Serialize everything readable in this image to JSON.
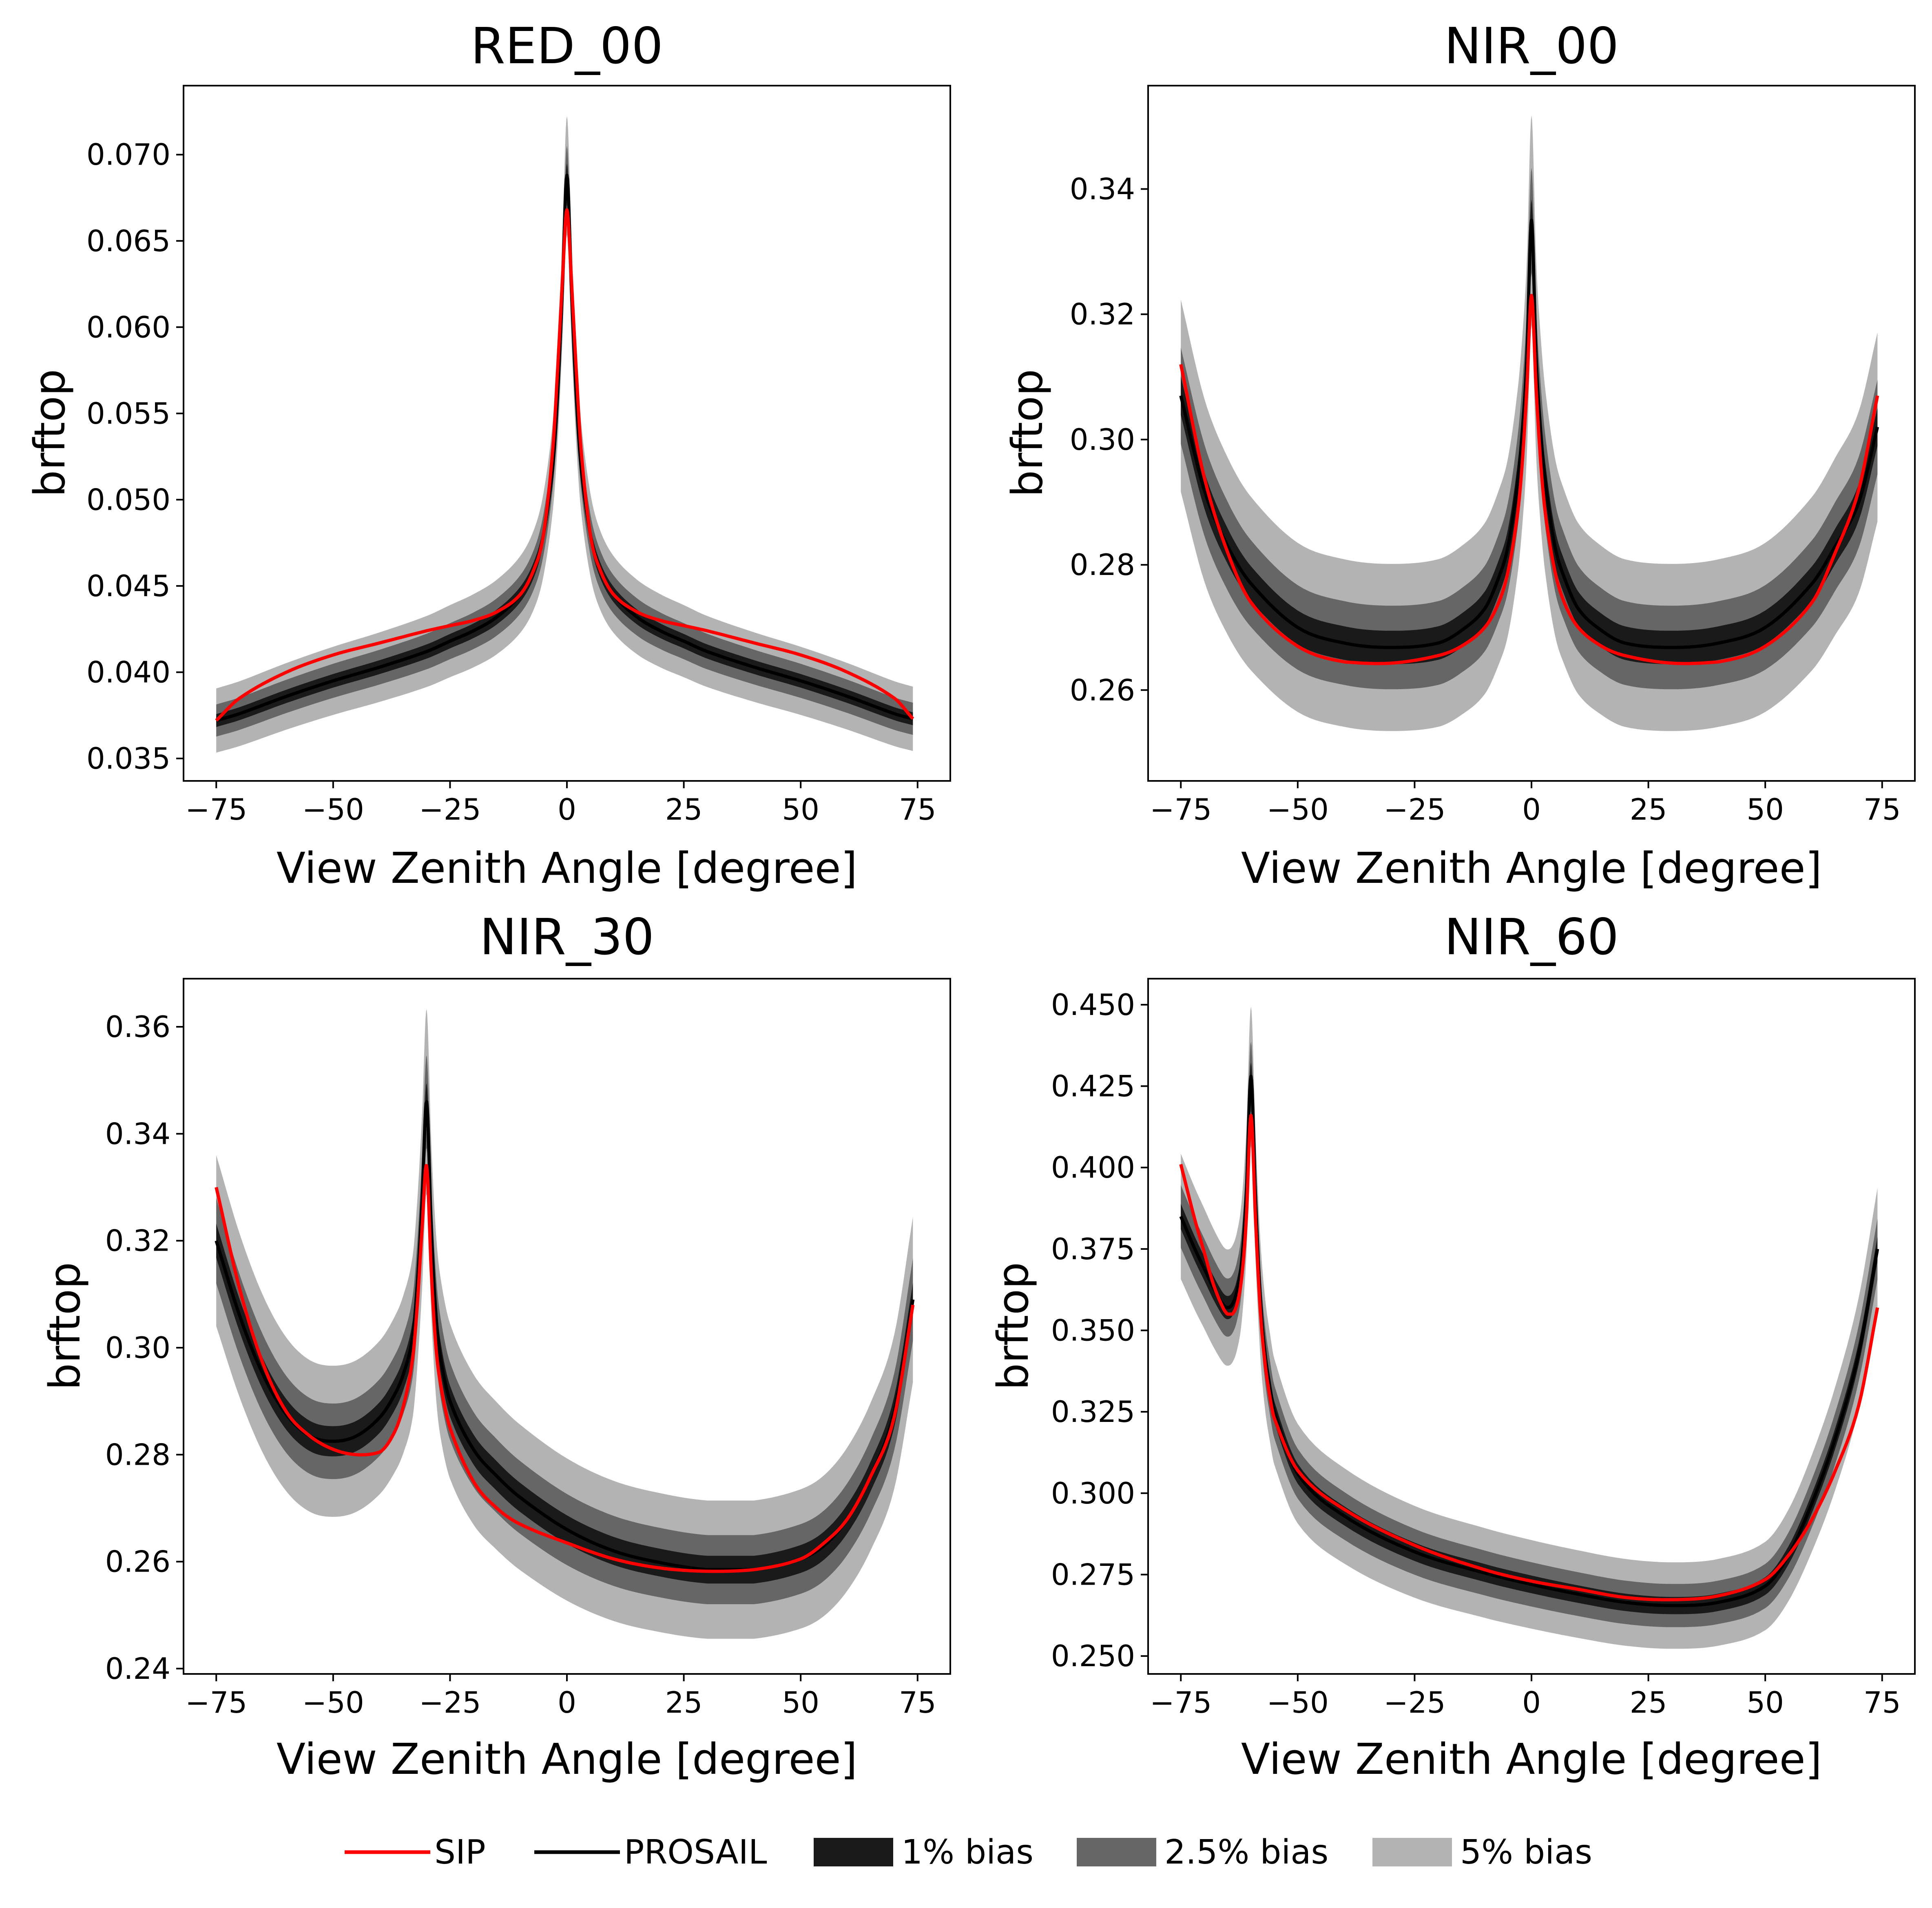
{
  "chart_data": [
    {
      "type": "area",
      "title": "RED_00",
      "xlabel": "View Zenith Angle [degree]",
      "ylabel": "brftop",
      "xlim": [
        -82,
        82
      ],
      "ylim": [
        0.0337,
        0.074
      ],
      "xticks": [
        -75,
        -50,
        -25,
        0,
        25,
        50,
        75
      ],
      "xtick_labels": [
        "−75",
        "−50",
        "−25",
        "0",
        "25",
        "50",
        "75"
      ],
      "yticks": [
        0.035,
        0.04,
        0.045,
        0.05,
        0.055,
        0.06,
        0.065,
        0.07
      ],
      "ytick_labels": [
        "0.035",
        "0.040",
        "0.045",
        "0.050",
        "0.055",
        "0.060",
        "0.065",
        "0.070"
      ],
      "x": [
        -75,
        -70,
        -60,
        -50,
        -40,
        -30,
        -25,
        -20,
        -15,
        -10,
        -7,
        -5,
        -3,
        -2,
        -1,
        0,
        1,
        2,
        3,
        5,
        7,
        10,
        15,
        20,
        25,
        30,
        40,
        50,
        60,
        70,
        74
      ],
      "series": [
        {
          "name": "SIP",
          "values": [
            0.0372,
            0.0385,
            0.04,
            0.041,
            0.0417,
            0.0424,
            0.0427,
            0.043,
            0.0435,
            0.0445,
            0.046,
            0.048,
            0.053,
            0.0575,
            0.0625,
            0.0668,
            0.0625,
            0.0575,
            0.053,
            0.048,
            0.046,
            0.0445,
            0.0435,
            0.043,
            0.0427,
            0.0424,
            0.0417,
            0.041,
            0.04,
            0.0385,
            0.0373
          ]
        },
        {
          "name": "PROSAIL",
          "values": [
            0.0372,
            0.0376,
            0.0386,
            0.0395,
            0.0403,
            0.0412,
            0.0418,
            0.0424,
            0.0432,
            0.0445,
            0.046,
            0.048,
            0.052,
            0.056,
            0.062,
            0.0688,
            0.062,
            0.056,
            0.052,
            0.048,
            0.046,
            0.0445,
            0.0432,
            0.0424,
            0.0418,
            0.0412,
            0.0403,
            0.0395,
            0.0386,
            0.0376,
            0.0373
          ]
        }
      ],
      "bands": [
        {
          "name": "1% bias",
          "color": "#1a1a1a",
          "fraction": 0.01
        },
        {
          "name": "2.5% bias",
          "color": "#666666",
          "fraction": 0.025
        },
        {
          "name": "5% bias",
          "color": "#b3b3b3",
          "fraction": 0.05
        }
      ]
    },
    {
      "type": "area",
      "title": "NIR_00",
      "xlabel": "View Zenith Angle [degree]",
      "ylabel": "brftop",
      "xlim": [
        -82,
        82
      ],
      "ylim": [
        0.2455,
        0.3565
      ],
      "xticks": [
        -75,
        -50,
        -25,
        0,
        25,
        50,
        75
      ],
      "xtick_labels": [
        "−75",
        "−50",
        "−25",
        "0",
        "25",
        "50",
        "75"
      ],
      "yticks": [
        0.26,
        0.28,
        0.3,
        0.32,
        0.34
      ],
      "ytick_labels": [
        "0.26",
        "0.28",
        "0.30",
        "0.32",
        "0.34"
      ],
      "x": [
        -75,
        -70,
        -65,
        -60,
        -50,
        -40,
        -30,
        -20,
        -15,
        -10,
        -7,
        -5,
        -3,
        -2,
        -1,
        0,
        1,
        2,
        3,
        5,
        7,
        10,
        15,
        20,
        30,
        40,
        50,
        60,
        65,
        70,
        74
      ],
      "series": [
        {
          "name": "SIP",
          "values": [
            0.312,
            0.294,
            0.282,
            0.274,
            0.267,
            0.2645,
            0.2643,
            0.2655,
            0.267,
            0.27,
            0.274,
            0.279,
            0.288,
            0.296,
            0.308,
            0.323,
            0.308,
            0.296,
            0.288,
            0.279,
            0.274,
            0.27,
            0.267,
            0.2655,
            0.2643,
            0.2645,
            0.267,
            0.274,
            0.282,
            0.292,
            0.307
          ]
        },
        {
          "name": "PROSAIL",
          "values": [
            0.307,
            0.292,
            0.283,
            0.277,
            0.27,
            0.2675,
            0.2668,
            0.2675,
            0.2695,
            0.273,
            0.278,
            0.283,
            0.293,
            0.301,
            0.313,
            0.335,
            0.313,
            0.301,
            0.293,
            0.283,
            0.278,
            0.273,
            0.2695,
            0.2675,
            0.2668,
            0.2675,
            0.27,
            0.277,
            0.283,
            0.29,
            0.302
          ]
        }
      ],
      "bands": [
        {
          "name": "1% bias",
          "color": "#1a1a1a",
          "fraction": 0.01
        },
        {
          "name": "2.5% bias",
          "color": "#666666",
          "fraction": 0.025
        },
        {
          "name": "5% bias",
          "color": "#b3b3b3",
          "fraction": 0.05
        }
      ]
    },
    {
      "type": "area",
      "title": "NIR_30",
      "xlabel": "View Zenith Angle [degree]",
      "ylabel": "brftop",
      "xlim": [
        -82,
        82
      ],
      "ylim": [
        0.239,
        0.369
      ],
      "xticks": [
        -75,
        -50,
        -25,
        0,
        25,
        50,
        75
      ],
      "xtick_labels": [
        "−75",
        "−50",
        "−25",
        "0",
        "25",
        "50",
        "75"
      ],
      "yticks": [
        0.24,
        0.26,
        0.28,
        0.3,
        0.32,
        0.34,
        0.36
      ],
      "ytick_labels": [
        "0.24",
        "0.26",
        "0.28",
        "0.30",
        "0.32",
        "0.34",
        "0.36"
      ],
      "x": [
        -75,
        -70,
        -65,
        -60,
        -55,
        -50,
        -45,
        -40,
        -37,
        -35,
        -33,
        -32,
        -31,
        -30,
        -29,
        -28,
        -27,
        -25,
        -20,
        -15,
        -10,
        0,
        10,
        20,
        30,
        40,
        50,
        55,
        60,
        65,
        70,
        74
      ],
      "series": [
        {
          "name": "SIP",
          "values": [
            0.33,
            0.311,
            0.297,
            0.288,
            0.2835,
            0.281,
            0.28,
            0.2805,
            0.284,
            0.289,
            0.298,
            0.308,
            0.322,
            0.334,
            0.314,
            0.3,
            0.293,
            0.285,
            0.275,
            0.27,
            0.267,
            0.2635,
            0.2605,
            0.2588,
            0.2582,
            0.2585,
            0.2605,
            0.2635,
            0.268,
            0.276,
            0.287,
            0.308
          ]
        },
        {
          "name": "PROSAIL",
          "values": [
            0.32,
            0.306,
            0.295,
            0.2875,
            0.2835,
            0.2825,
            0.2835,
            0.287,
            0.291,
            0.295,
            0.302,
            0.312,
            0.327,
            0.346,
            0.322,
            0.306,
            0.298,
            0.29,
            0.281,
            0.276,
            0.272,
            0.266,
            0.262,
            0.2598,
            0.2585,
            0.2585,
            0.2605,
            0.263,
            0.268,
            0.276,
            0.288,
            0.309
          ]
        }
      ],
      "bands": [
        {
          "name": "1% bias",
          "color": "#1a1a1a",
          "fraction": 0.01
        },
        {
          "name": "2.5% bias",
          "color": "#666666",
          "fraction": 0.025
        },
        {
          "name": "5% bias",
          "color": "#b3b3b3",
          "fraction": 0.05
        }
      ]
    },
    {
      "type": "area",
      "title": "NIR_60",
      "xlabel": "View Zenith Angle [degree]",
      "ylabel": "brftop",
      "xlim": [
        -82,
        82
      ],
      "ylim": [
        0.2445,
        0.458
      ],
      "xticks": [
        -75,
        -50,
        -25,
        0,
        25,
        50,
        75
      ],
      "xtick_labels": [
        "−75",
        "−50",
        "−25",
        "0",
        "25",
        "50",
        "75"
      ],
      "yticks": [
        0.25,
        0.275,
        0.3,
        0.325,
        0.35,
        0.375,
        0.4,
        0.425,
        0.45
      ],
      "ytick_labels": [
        "0.250",
        "0.275",
        "0.300",
        "0.325",
        "0.350",
        "0.375",
        "0.400",
        "0.425",
        "0.450"
      ],
      "x": [
        -75,
        -72,
        -70,
        -68,
        -66,
        -65,
        -64,
        -63,
        -62,
        -61,
        -60,
        -59,
        -58,
        -57,
        -56,
        -55,
        -50,
        -40,
        -25,
        -10,
        0,
        10,
        20,
        30,
        40,
        50,
        55,
        60,
        65,
        70,
        74
      ],
      "series": [
        {
          "name": "SIP",
          "values": [
            0.401,
            0.384,
            0.374,
            0.364,
            0.357,
            0.355,
            0.355,
            0.358,
            0.366,
            0.384,
            0.416,
            0.383,
            0.356,
            0.34,
            0.33,
            0.323,
            0.307,
            0.295,
            0.284,
            0.2765,
            0.273,
            0.2705,
            0.268,
            0.2673,
            0.2685,
            0.2735,
            0.281,
            0.292,
            0.307,
            0.327,
            0.357
          ]
        },
        {
          "name": "PROSAIL",
          "values": [
            0.385,
            0.375,
            0.369,
            0.363,
            0.358,
            0.357,
            0.358,
            0.362,
            0.371,
            0.392,
            0.428,
            0.39,
            0.36,
            0.343,
            0.333,
            0.325,
            0.306,
            0.293,
            0.282,
            0.2755,
            0.272,
            0.269,
            0.2665,
            0.2655,
            0.2665,
            0.2715,
            0.281,
            0.297,
            0.317,
            0.343,
            0.375
          ]
        }
      ],
      "bands": [
        {
          "name": "1% bias",
          "color": "#1a1a1a",
          "fraction": 0.01
        },
        {
          "name": "2.5% bias",
          "color": "#666666",
          "fraction": 0.025
        },
        {
          "name": "5% bias",
          "color": "#b3b3b3",
          "fraction": 0.05
        }
      ]
    }
  ],
  "legend": {
    "placement": "bottom-center",
    "items": [
      {
        "label": "SIP",
        "kind": "line",
        "color": "#ff0000"
      },
      {
        "label": "PROSAIL",
        "kind": "line",
        "color": "#000000"
      },
      {
        "label": "1% bias",
        "kind": "patch",
        "color": "#1a1a1a"
      },
      {
        "label": "2.5% bias",
        "kind": "patch",
        "color": "#666666"
      },
      {
        "label": "5% bias",
        "kind": "patch",
        "color": "#b3b3b3"
      }
    ]
  },
  "colors": {
    "sip": "#ff0000",
    "prosail": "#000000"
  }
}
